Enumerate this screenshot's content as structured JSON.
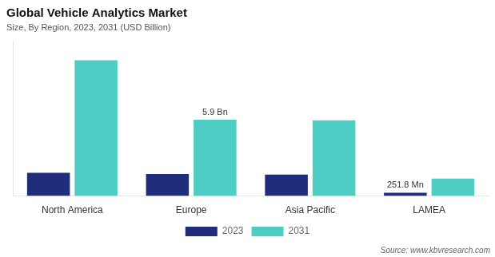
{
  "chart_data": {
    "type": "bar",
    "title": "Global Vehicle Analytics Market",
    "subtitle": "Size, By Region, 2023, 2031 (USD Billion)",
    "source": "Source: www.kbvresearch.com",
    "categories": [
      "North America",
      "Europe",
      "Asia Pacific",
      "LAMEA"
    ],
    "series": [
      {
        "name": "2023",
        "color": "#1f2d7b",
        "values": [
          1.8,
          1.7,
          1.65,
          0.25
        ]
      },
      {
        "name": "2031",
        "color": "#4ecdc4",
        "values": [
          10.5,
          5.9,
          5.85,
          1.35
        ]
      }
    ],
    "annotations": [
      {
        "text": "5.9 Bn",
        "category": "Europe",
        "series": "2031"
      },
      {
        "text": "251.8 Mn",
        "category": "LAMEA",
        "series": "2023"
      }
    ],
    "ylim": [
      0,
      12
    ],
    "grid": false,
    "legend": "bottom",
    "tick_labels": "x"
  }
}
